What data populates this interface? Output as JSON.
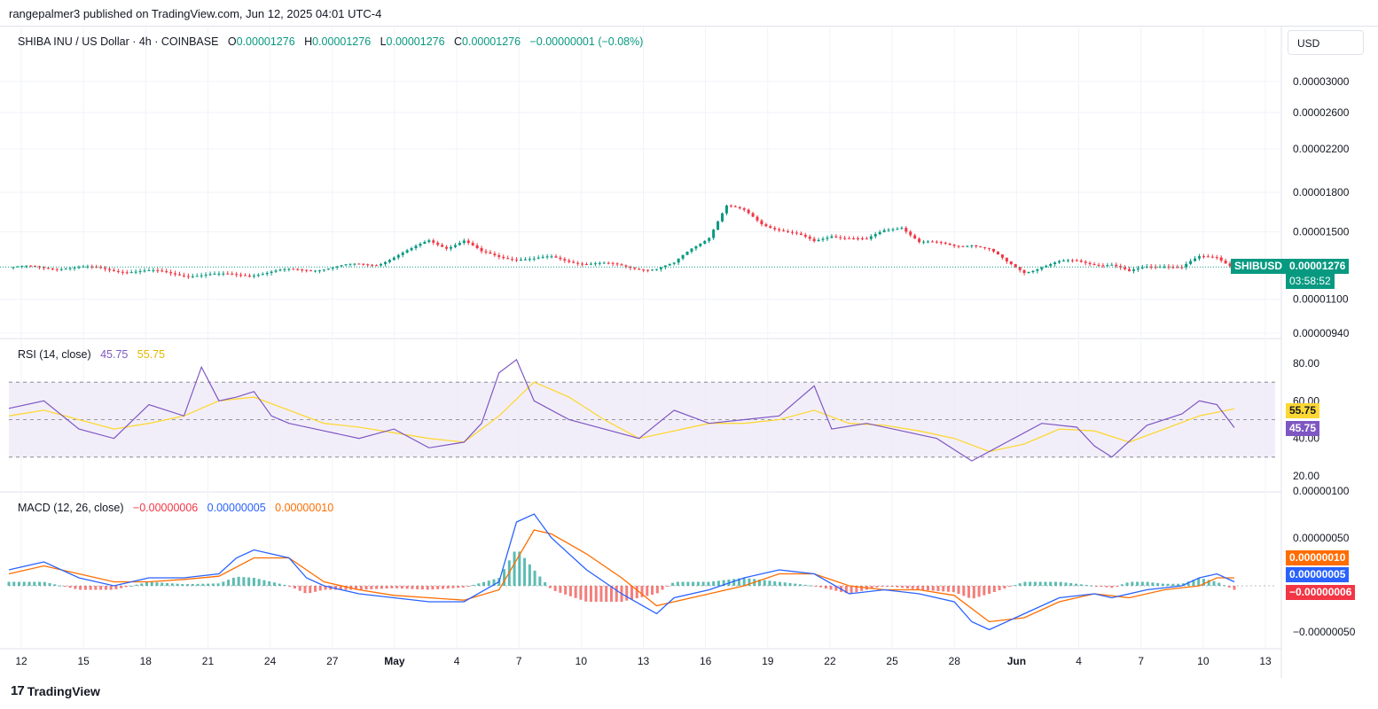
{
  "header": {
    "publisher": "rangepalmer3 published on TradingView.com, Jun 12, 2025 04:01 UTC-4"
  },
  "legend": {
    "symbol": "SHIBA INU / US Dollar · 4h · COINBASE",
    "o_label": "O",
    "o": "0.00001276",
    "h_label": "H",
    "h": "0.00001276",
    "l_label": "L",
    "l": "0.00001276",
    "c_label": "C",
    "c": "0.00001276",
    "change": "−0.00000001 (−0.08%)"
  },
  "currency_button": "USD",
  "price_tag": {
    "ticker": "SHIBUSD",
    "price": "0.00001276",
    "countdown": "03:58:52"
  },
  "rsi": {
    "title": "RSI (14, close)",
    "value": "45.75",
    "ma": "55.75"
  },
  "macd": {
    "title": "MACD (12, 26, close)",
    "hist": "−0.00000006",
    "macd": "0.00000005",
    "signal": "0.00000010"
  },
  "colors": {
    "up": "#089981",
    "down": "#f23645",
    "rsi": "#7e57c2",
    "rsi_ma": "#fdd835",
    "macd": "#2962ff",
    "signal": "#ff6d00",
    "rsi_band": "#ede7f6"
  },
  "footer": {
    "brand": "TradingView"
  },
  "chart_data": {
    "type": "line",
    "price_axis_ticks": [
      "0.00003000",
      "0.00002600",
      "0.00002200",
      "0.00001800",
      "0.00001500",
      "0.00001100",
      "0.00000940"
    ],
    "rsi_axis_ticks": [
      "80.00",
      "60.00",
      "40.00",
      "20.00"
    ],
    "macd_axis_ticks": [
      "0.00000100",
      "0.00000050",
      "−0.00000050"
    ],
    "x_ticks": [
      "12",
      "15",
      "18",
      "21",
      "24",
      "27",
      "May",
      "4",
      "7",
      "10",
      "13",
      "16",
      "19",
      "22",
      "25",
      "28",
      "Jun",
      "4",
      "7",
      "10",
      "13"
    ],
    "price_series": [
      [
        0,
        1.27
      ],
      [
        3,
        1.275
      ],
      [
        6,
        1.26
      ],
      [
        9,
        1.24
      ],
      [
        12,
        1.225
      ],
      [
        15,
        1.245
      ],
      [
        18,
        1.27
      ],
      [
        21,
        1.295
      ],
      [
        23,
        1.38
      ],
      [
        24,
        1.44
      ],
      [
        25,
        1.4
      ],
      [
        26,
        1.44
      ],
      [
        27,
        1.36
      ],
      [
        28,
        1.34
      ],
      [
        30,
        1.32
      ],
      [
        31,
        1.33
      ],
      [
        33,
        1.3
      ],
      [
        35,
        1.28
      ],
      [
        37,
        1.265
      ],
      [
        38,
        1.29
      ],
      [
        39,
        1.39
      ],
      [
        40,
        1.47
      ],
      [
        41,
        1.69
      ],
      [
        42,
        1.65
      ],
      [
        43,
        1.56
      ],
      [
        44,
        1.52
      ],
      [
        45,
        1.48
      ],
      [
        46,
        1.43
      ],
      [
        47,
        1.48
      ],
      [
        48,
        1.46
      ],
      [
        49,
        1.44
      ],
      [
        50,
        1.51
      ],
      [
        51,
        1.54
      ],
      [
        52,
        1.43
      ],
      [
        53,
        1.42
      ],
      [
        54,
        1.41
      ],
      [
        55,
        1.42
      ],
      [
        56,
        1.38
      ],
      [
        57,
        1.3
      ],
      [
        58,
        1.25
      ],
      [
        59,
        1.28
      ],
      [
        60,
        1.3
      ],
      [
        61,
        1.31
      ],
      [
        62,
        1.3
      ],
      [
        63,
        1.29
      ],
      [
        64,
        1.24
      ],
      [
        65,
        1.28
      ],
      [
        66,
        1.29
      ],
      [
        67,
        1.27
      ],
      [
        68,
        1.33
      ],
      [
        69,
        1.34
      ],
      [
        70,
        1.276
      ]
    ],
    "rsi_series": [
      [
        0,
        56
      ],
      [
        2,
        60
      ],
      [
        4,
        45
      ],
      [
        6,
        40
      ],
      [
        8,
        58
      ],
      [
        10,
        52
      ],
      [
        11,
        78
      ],
      [
        12,
        60
      ],
      [
        13,
        62
      ],
      [
        14,
        65
      ],
      [
        15,
        52
      ],
      [
        16,
        48
      ],
      [
        18,
        44
      ],
      [
        20,
        40
      ],
      [
        22,
        45
      ],
      [
        24,
        35
      ],
      [
        26,
        38
      ],
      [
        27,
        48
      ],
      [
        28,
        75
      ],
      [
        29,
        82
      ],
      [
        30,
        60
      ],
      [
        32,
        50
      ],
      [
        34,
        45
      ],
      [
        36,
        40
      ],
      [
        38,
        55
      ],
      [
        40,
        48
      ],
      [
        42,
        50
      ],
      [
        44,
        52
      ],
      [
        45,
        60
      ],
      [
        46,
        68
      ],
      [
        47,
        45
      ],
      [
        49,
        48
      ],
      [
        51,
        44
      ],
      [
        53,
        40
      ],
      [
        55,
        28
      ],
      [
        57,
        38
      ],
      [
        59,
        48
      ],
      [
        61,
        46
      ],
      [
        62,
        36
      ],
      [
        63,
        30
      ],
      [
        65,
        47
      ],
      [
        67,
        53
      ],
      [
        68,
        60
      ],
      [
        69,
        58
      ],
      [
        70,
        45.75
      ]
    ],
    "rsi_ma_series": [
      [
        0,
        52
      ],
      [
        2,
        55
      ],
      [
        4,
        50
      ],
      [
        6,
        45
      ],
      [
        8,
        48
      ],
      [
        10,
        52
      ],
      [
        12,
        60
      ],
      [
        14,
        62
      ],
      [
        16,
        55
      ],
      [
        18,
        48
      ],
      [
        20,
        46
      ],
      [
        22,
        43
      ],
      [
        24,
        40
      ],
      [
        26,
        38
      ],
      [
        28,
        52
      ],
      [
        30,
        70
      ],
      [
        32,
        62
      ],
      [
        34,
        50
      ],
      [
        36,
        40
      ],
      [
        38,
        44
      ],
      [
        40,
        48
      ],
      [
        42,
        48
      ],
      [
        44,
        50
      ],
      [
        46,
        55
      ],
      [
        48,
        48
      ],
      [
        50,
        47
      ],
      [
        52,
        44
      ],
      [
        54,
        40
      ],
      [
        56,
        33
      ],
      [
        58,
        37
      ],
      [
        60,
        45
      ],
      [
        62,
        44
      ],
      [
        64,
        38
      ],
      [
        66,
        45
      ],
      [
        68,
        52
      ],
      [
        70,
        55.75
      ]
    ],
    "macd_series": [
      [
        0,
        20
      ],
      [
        2,
        30
      ],
      [
        4,
        10
      ],
      [
        6,
        0
      ],
      [
        8,
        10
      ],
      [
        10,
        10
      ],
      [
        12,
        15
      ],
      [
        13,
        35
      ],
      [
        14,
        45
      ],
      [
        16,
        35
      ],
      [
        17,
        10
      ],
      [
        18,
        0
      ],
      [
        20,
        -10
      ],
      [
        22,
        -15
      ],
      [
        24,
        -20
      ],
      [
        26,
        -20
      ],
      [
        28,
        5
      ],
      [
        29,
        80
      ],
      [
        30,
        90
      ],
      [
        31,
        60
      ],
      [
        33,
        20
      ],
      [
        35,
        -10
      ],
      [
        37,
        -35
      ],
      [
        38,
        -15
      ],
      [
        40,
        -5
      ],
      [
        42,
        10
      ],
      [
        44,
        20
      ],
      [
        46,
        15
      ],
      [
        48,
        -10
      ],
      [
        50,
        -5
      ],
      [
        52,
        -10
      ],
      [
        54,
        -20
      ],
      [
        55,
        -45
      ],
      [
        56,
        -55
      ],
      [
        58,
        -35
      ],
      [
        60,
        -15
      ],
      [
        62,
        -10
      ],
      [
        63,
        -15
      ],
      [
        65,
        -5
      ],
      [
        67,
        0
      ],
      [
        68,
        10
      ],
      [
        69,
        15
      ],
      [
        70,
        5
      ]
    ],
    "signal_series": [
      [
        0,
        15
      ],
      [
        2,
        25
      ],
      [
        4,
        15
      ],
      [
        6,
        5
      ],
      [
        8,
        5
      ],
      [
        10,
        8
      ],
      [
        12,
        12
      ],
      [
        14,
        35
      ],
      [
        16,
        35
      ],
      [
        17,
        20
      ],
      [
        18,
        5
      ],
      [
        20,
        -5
      ],
      [
        22,
        -12
      ],
      [
        24,
        -15
      ],
      [
        26,
        -18
      ],
      [
        28,
        -5
      ],
      [
        30,
        70
      ],
      [
        31,
        65
      ],
      [
        33,
        40
      ],
      [
        35,
        10
      ],
      [
        37,
        -25
      ],
      [
        38,
        -20
      ],
      [
        40,
        -10
      ],
      [
        42,
        0
      ],
      [
        44,
        15
      ],
      [
        46,
        15
      ],
      [
        48,
        0
      ],
      [
        50,
        -5
      ],
      [
        52,
        -5
      ],
      [
        54,
        -12
      ],
      [
        56,
        -45
      ],
      [
        58,
        -40
      ],
      [
        60,
        -20
      ],
      [
        62,
        -10
      ],
      [
        64,
        -15
      ],
      [
        66,
        -5
      ],
      [
        68,
        0
      ],
      [
        69,
        10
      ],
      [
        70,
        10
      ]
    ]
  }
}
